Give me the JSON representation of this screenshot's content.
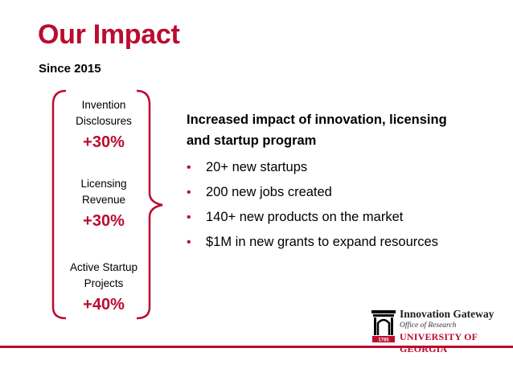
{
  "slide": {
    "title": "Our Impact",
    "subtitle": "Since 2015"
  },
  "metrics": [
    {
      "label_line1": "Invention",
      "label_line2": "Disclosures",
      "value": "+30%"
    },
    {
      "label_line1": "Licensing",
      "label_line2": "Revenue",
      "value": "+30%"
    },
    {
      "label_line1": "Active Startup",
      "label_line2": "Projects",
      "value": "+40%"
    }
  ],
  "content": {
    "heading_line1": "Increased impact of innovation, licensing",
    "heading_line2": "and startup program",
    "bullets": [
      "20+ new startups",
      "200 new jobs created",
      "140+ new products on the market",
      "$1M in new grants to expand resources"
    ]
  },
  "footer": {
    "logo_line1": "Innovation Gateway",
    "logo_line2": "Office of Research",
    "logo_line3": "UNIVERSITY OF GEORGIA",
    "seal_year": "1785"
  },
  "colors": {
    "accent": "#ba0c2f",
    "text": "#000000",
    "background": "#ffffff"
  },
  "icons": {
    "bullet": "bullet-dot-icon",
    "brace": "curly-brace-icon",
    "logo": "uga-arch-logo-icon"
  }
}
